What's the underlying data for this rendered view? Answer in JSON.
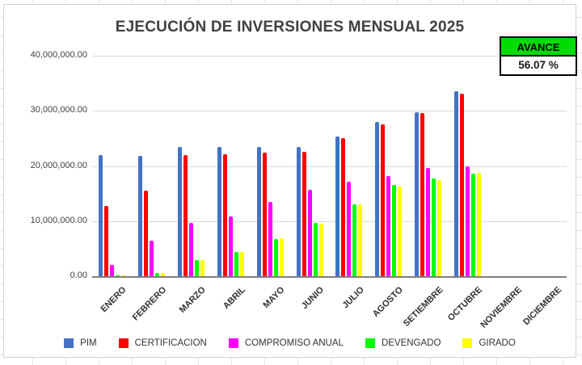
{
  "chart_data": {
    "type": "bar",
    "title": "EJECUCIÓN DE INVERSIONES MENSUAL 2025",
    "categories": [
      "ENERO",
      "FEBRERO",
      "MARZO",
      "ABRIL",
      "MAYO",
      "JUNIO",
      "JULIO",
      "AGOSTO",
      "SETIEMBRE",
      "OCTUBRE",
      "NOVIEMBRE",
      "DICIEMBRE"
    ],
    "series": [
      {
        "name": "PIM",
        "color": "#4472C4",
        "values": [
          22000000,
          21900000,
          23500000,
          23500000,
          23500000,
          23500000,
          25300000,
          28000000,
          29700000,
          33600000,
          0,
          0
        ]
      },
      {
        "name": "CERTIFICACION",
        "color": "#FF0000",
        "values": [
          12800000,
          15500000,
          22000000,
          22200000,
          22400000,
          22500000,
          25000000,
          27500000,
          29600000,
          33100000,
          0,
          0
        ]
      },
      {
        "name": "COMPROMISO ANUAL",
        "color": "#FF00FF",
        "values": [
          2100000,
          6500000,
          9700000,
          10800000,
          13500000,
          15700000,
          17200000,
          18200000,
          19700000,
          20000000,
          0,
          0
        ]
      },
      {
        "name": "DEVENGADO",
        "color": "#00FF00",
        "values": [
          150000,
          600000,
          3000000,
          4400000,
          6800000,
          9600000,
          13000000,
          16500000,
          17700000,
          18600000,
          0,
          0
        ]
      },
      {
        "name": "GIRADO",
        "color": "#FFFF00",
        "values": [
          100000,
          600000,
          2900000,
          4400000,
          6900000,
          9500000,
          13100000,
          16300000,
          17500000,
          18700000,
          0,
          0
        ]
      }
    ],
    "ylim": [
      0,
      40000000
    ],
    "ytick_labels": [
      "40,000,000.00",
      "30,000,000.00",
      "20,000,000.00",
      "10,000,000.00",
      "0.00"
    ],
    "ytick_values": [
      40000000,
      30000000,
      20000000,
      10000000,
      0
    ],
    "grid": true,
    "legend_position": "bottom"
  },
  "avance": {
    "label": "AVANCE",
    "value": "56.07 %",
    "header_color": "#00DB00"
  },
  "style_colors": {
    "gridline": "#D9D9D9",
    "axis_line": "#7F7F7F",
    "title_text": "#404040"
  }
}
